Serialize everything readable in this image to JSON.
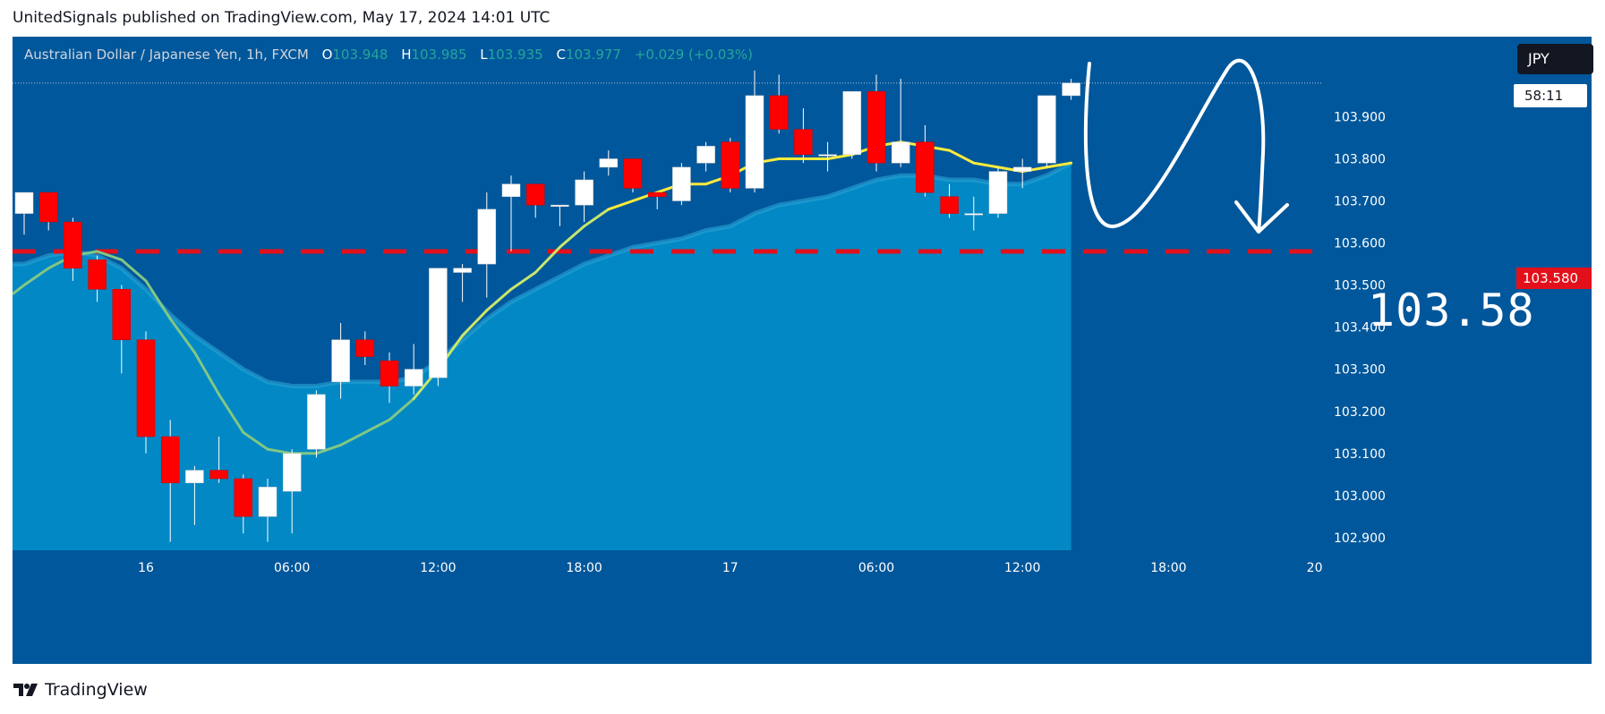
{
  "header": {
    "published_text": "UnitedSignals published on TradingView.com, May 17, 2024 14:01 UTC"
  },
  "legend": {
    "symbol_text": "Australian Dollar / Japanese Yen, 1h, FXCM",
    "open_label": "O",
    "open_value": "103.948",
    "high_label": "H",
    "high_value": "103.985",
    "low_label": "L",
    "low_value": "103.935",
    "close_label": "C",
    "close_value": "103.977",
    "change_text": "+0.029 (+0.03%)"
  },
  "currency_badge": "JPY",
  "countdown_badge": "58:11",
  "target_badge": "103.580",
  "annotation_text": "103.58",
  "footer": {
    "logo_text": "TradingView"
  },
  "colors": {
    "background": "#01579b",
    "bull_candle": "#ffffff",
    "bear_candle": "#ff0000",
    "fast_ma": "#ffeb3b",
    "slow_ma": "#81c784",
    "area_fill": "#0288c4",
    "target_line": "#e3101b"
  },
  "chart_data": {
    "type": "candlestick",
    "timeframe": "1h",
    "ylim": [
      102.87,
      104.02
    ],
    "y_ticks": [
      "103.900",
      "103.800",
      "103.700",
      "103.600",
      "103.500",
      "103.400",
      "103.300",
      "103.200",
      "103.100",
      "103.000",
      "102.900"
    ],
    "x_ticks": [
      {
        "bar": 5,
        "label": "16"
      },
      {
        "bar": 11,
        "label": "06:00"
      },
      {
        "bar": 17,
        "label": "12:00"
      },
      {
        "bar": 23,
        "label": "18:00"
      },
      {
        "bar": 29,
        "label": "17"
      },
      {
        "bar": 35,
        "label": "06:00"
      },
      {
        "bar": 41,
        "label": "12:00"
      },
      {
        "bar": 47,
        "label": "18:00"
      },
      {
        "bar": 53,
        "label": "20"
      }
    ],
    "horizontal_line": 103.58,
    "candles": [
      {
        "o": 103.67,
        "h": 103.72,
        "l": 103.62,
        "c": 103.72
      },
      {
        "o": 103.72,
        "h": 103.72,
        "l": 103.63,
        "c": 103.65
      },
      {
        "o": 103.65,
        "h": 103.66,
        "l": 103.51,
        "c": 103.54
      },
      {
        "o": 103.56,
        "h": 103.57,
        "l": 103.46,
        "c": 103.49
      },
      {
        "o": 103.49,
        "h": 103.5,
        "l": 103.29,
        "c": 103.37
      },
      {
        "o": 103.37,
        "h": 103.39,
        "l": 103.1,
        "c": 103.14
      },
      {
        "o": 103.14,
        "h": 103.18,
        "l": 102.89,
        "c": 103.03
      },
      {
        "o": 103.03,
        "h": 103.07,
        "l": 102.93,
        "c": 103.06
      },
      {
        "o": 103.06,
        "h": 103.14,
        "l": 103.03,
        "c": 103.04
      },
      {
        "o": 103.04,
        "h": 103.05,
        "l": 102.91,
        "c": 102.95
      },
      {
        "o": 102.95,
        "h": 103.04,
        "l": 102.89,
        "c": 103.02
      },
      {
        "o": 103.01,
        "h": 103.11,
        "l": 102.91,
        "c": 103.1
      },
      {
        "o": 103.11,
        "h": 103.25,
        "l": 103.09,
        "c": 103.24
      },
      {
        "o": 103.27,
        "h": 103.41,
        "l": 103.23,
        "c": 103.37
      },
      {
        "o": 103.37,
        "h": 103.39,
        "l": 103.31,
        "c": 103.33
      },
      {
        "o": 103.32,
        "h": 103.34,
        "l": 103.22,
        "c": 103.26
      },
      {
        "o": 103.26,
        "h": 103.36,
        "l": 103.24,
        "c": 103.3
      },
      {
        "o": 103.28,
        "h": 103.54,
        "l": 103.26,
        "c": 103.54
      },
      {
        "o": 103.53,
        "h": 103.55,
        "l": 103.46,
        "c": 103.54
      },
      {
        "o": 103.55,
        "h": 103.72,
        "l": 103.47,
        "c": 103.68
      },
      {
        "o": 103.71,
        "h": 103.76,
        "l": 103.58,
        "c": 103.74
      },
      {
        "o": 103.74,
        "h": 103.74,
        "l": 103.66,
        "c": 103.69
      },
      {
        "o": 103.69,
        "h": 103.69,
        "l": 103.64,
        "c": 103.69
      },
      {
        "o": 103.69,
        "h": 103.77,
        "l": 103.65,
        "c": 103.75
      },
      {
        "o": 103.78,
        "h": 103.82,
        "l": 103.76,
        "c": 103.8
      },
      {
        "o": 103.8,
        "h": 103.8,
        "l": 103.72,
        "c": 103.73
      },
      {
        "o": 103.72,
        "h": 103.72,
        "l": 103.68,
        "c": 103.71
      },
      {
        "o": 103.7,
        "h": 103.79,
        "l": 103.69,
        "c": 103.78
      },
      {
        "o": 103.79,
        "h": 103.84,
        "l": 103.77,
        "c": 103.83
      },
      {
        "o": 103.84,
        "h": 103.85,
        "l": 103.72,
        "c": 103.73
      },
      {
        "o": 103.73,
        "h": 104.01,
        "l": 103.72,
        "c": 103.95
      },
      {
        "o": 103.95,
        "h": 104.0,
        "l": 103.86,
        "c": 103.87
      },
      {
        "o": 103.87,
        "h": 103.92,
        "l": 103.79,
        "c": 103.81
      },
      {
        "o": 103.81,
        "h": 103.84,
        "l": 103.77,
        "c": 103.81
      },
      {
        "o": 103.81,
        "h": 103.96,
        "l": 103.8,
        "c": 103.96
      },
      {
        "o": 103.96,
        "h": 104.0,
        "l": 103.77,
        "c": 103.79
      },
      {
        "o": 103.79,
        "h": 103.99,
        "l": 103.78,
        "c": 103.84
      },
      {
        "o": 103.84,
        "h": 103.88,
        "l": 103.71,
        "c": 103.72
      },
      {
        "o": 103.71,
        "h": 103.74,
        "l": 103.66,
        "c": 103.67
      },
      {
        "o": 103.67,
        "h": 103.71,
        "l": 103.63,
        "c": 103.67
      },
      {
        "o": 103.67,
        "h": 103.78,
        "l": 103.66,
        "c": 103.77
      },
      {
        "o": 103.77,
        "h": 103.8,
        "l": 103.73,
        "c": 103.78
      },
      {
        "o": 103.79,
        "h": 103.95,
        "l": 103.78,
        "c": 103.95
      },
      {
        "o": 103.95,
        "h": 103.99,
        "l": 103.94,
        "c": 103.98
      }
    ],
    "fast_ma": [
      103.5,
      103.54,
      103.57,
      103.58,
      103.56,
      103.51,
      103.42,
      103.34,
      103.24,
      103.15,
      103.11,
      103.1,
      103.1,
      103.12,
      103.15,
      103.18,
      103.23,
      103.3,
      103.38,
      103.44,
      103.49,
      103.53,
      103.59,
      103.64,
      103.68,
      103.7,
      103.72,
      103.74,
      103.74,
      103.76,
      103.79,
      103.8,
      103.8,
      103.8,
      103.81,
      103.83,
      103.84,
      103.83,
      103.82,
      103.79,
      103.78,
      103.77,
      103.78,
      103.79
    ],
    "slow_ma": [
      103.55,
      103.57,
      103.58,
      103.57,
      103.54,
      103.49,
      103.43,
      103.38,
      103.34,
      103.3,
      103.27,
      103.26,
      103.26,
      103.27,
      103.27,
      103.27,
      103.28,
      103.32,
      103.37,
      103.42,
      103.46,
      103.49,
      103.52,
      103.55,
      103.57,
      103.59,
      103.6,
      103.61,
      103.63,
      103.64,
      103.67,
      103.69,
      103.7,
      103.71,
      103.73,
      103.75,
      103.76,
      103.76,
      103.75,
      103.75,
      103.74,
      103.74,
      103.76,
      103.79
    ]
  }
}
